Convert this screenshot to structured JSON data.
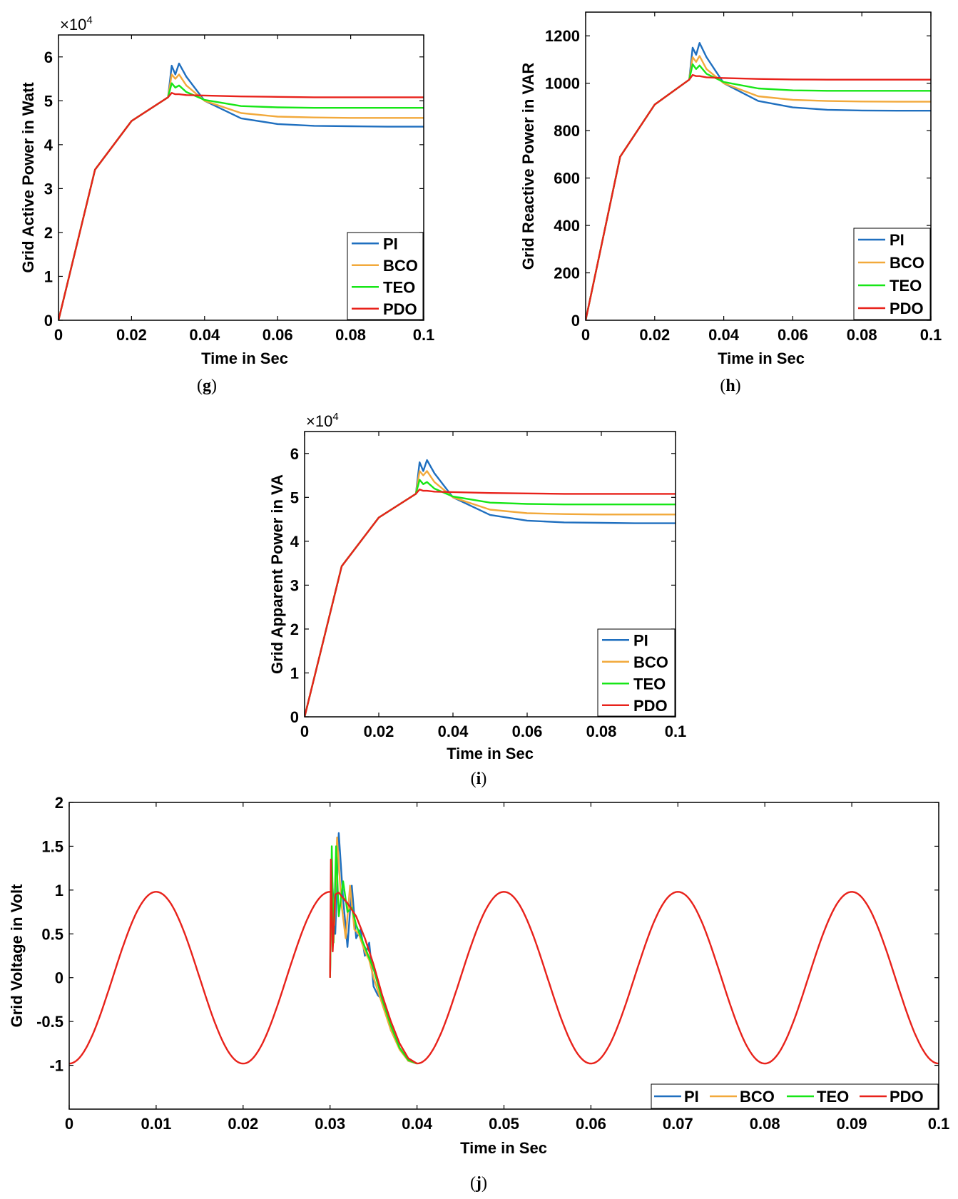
{
  "figure": {
    "series_colors": {
      "PI": "#1f6fbf",
      "BCO": "#f2a93b",
      "TEO": "#17e617",
      "PDO": "#e8221b"
    }
  },
  "chart_data": [
    {
      "id": "g",
      "type": "line",
      "subcaption": "g",
      "xlabel": "Time in Sec",
      "ylabel": "Grid Active Power in Watt",
      "exponent_base": "×10",
      "exponent_power": "4",
      "xlim": [
        0,
        0.1
      ],
      "ylim": [
        0,
        6.5
      ],
      "xticks": [
        0,
        0.02,
        0.04,
        0.06,
        0.08,
        0.1
      ],
      "xtick_labels": [
        "0",
        "0.02",
        "0.04",
        "0.06",
        "0.08",
        "0.1"
      ],
      "yticks": [
        0,
        1,
        2,
        3,
        4,
        5,
        6
      ],
      "ytick_labels": [
        "0",
        "1",
        "2",
        "3",
        "4",
        "5",
        "6"
      ],
      "legend": {
        "entries": [
          "PI",
          "BCO",
          "TEO",
          "PDO"
        ],
        "location": "bottom-right",
        "orientation": "vertical"
      },
      "series": [
        {
          "name": "PI",
          "x": [
            0,
            0.01,
            0.02,
            0.03,
            0.031,
            0.032,
            0.033,
            0.035,
            0.04,
            0.05,
            0.06,
            0.07,
            0.08,
            0.09,
            0.1
          ],
          "y": [
            0,
            3.43,
            4.54,
            5.08,
            5.8,
            5.6,
            5.85,
            5.55,
            5.0,
            4.6,
            4.47,
            4.43,
            4.42,
            4.41,
            4.41
          ]
        },
        {
          "name": "BCO",
          "x": [
            0,
            0.01,
            0.02,
            0.03,
            0.031,
            0.032,
            0.033,
            0.035,
            0.04,
            0.05,
            0.06,
            0.07,
            0.08,
            0.09,
            0.1
          ],
          "y": [
            0,
            3.43,
            4.54,
            5.08,
            5.6,
            5.5,
            5.6,
            5.35,
            5.0,
            4.72,
            4.64,
            4.62,
            4.61,
            4.61,
            4.61
          ]
        },
        {
          "name": "TEO",
          "x": [
            0,
            0.01,
            0.02,
            0.03,
            0.031,
            0.032,
            0.033,
            0.035,
            0.04,
            0.05,
            0.06,
            0.07,
            0.08,
            0.09,
            0.1
          ],
          "y": [
            0,
            3.43,
            4.54,
            5.08,
            5.4,
            5.3,
            5.35,
            5.2,
            5.02,
            4.88,
            4.85,
            4.84,
            4.84,
            4.84,
            4.84
          ]
        },
        {
          "name": "PDO",
          "x": [
            0,
            0.01,
            0.02,
            0.03,
            0.031,
            0.032,
            0.033,
            0.035,
            0.04,
            0.05,
            0.06,
            0.07,
            0.08,
            0.09,
            0.1
          ],
          "y": [
            0,
            3.43,
            4.54,
            5.08,
            5.18,
            5.15,
            5.15,
            5.13,
            5.12,
            5.1,
            5.09,
            5.08,
            5.08,
            5.08,
            5.08
          ]
        }
      ]
    },
    {
      "id": "h",
      "type": "line",
      "subcaption": "h",
      "xlabel": "Time in Sec",
      "ylabel": "Grid Reactive Power in VAR",
      "xlim": [
        0,
        0.1
      ],
      "ylim": [
        0,
        1300
      ],
      "xticks": [
        0,
        0.02,
        0.04,
        0.06,
        0.08,
        0.1
      ],
      "xtick_labels": [
        "0",
        "0.02",
        "0.04",
        "0.06",
        "0.08",
        "0.1"
      ],
      "yticks": [
        0,
        200,
        400,
        600,
        800,
        1000,
        1200
      ],
      "ytick_labels": [
        "0",
        "200",
        "400",
        "600",
        "800",
        "1000",
        "1200"
      ],
      "legend": {
        "entries": [
          "PI",
          "BCO",
          "TEO",
          "PDO"
        ],
        "location": "bottom-right",
        "orientation": "vertical"
      },
      "series": [
        {
          "name": "PI",
          "x": [
            0,
            0.01,
            0.02,
            0.03,
            0.031,
            0.032,
            0.033,
            0.035,
            0.04,
            0.05,
            0.06,
            0.07,
            0.08,
            0.09,
            0.1
          ],
          "y": [
            0,
            690,
            910,
            1015,
            1150,
            1120,
            1170,
            1110,
            1000,
            925,
            898,
            888,
            885,
            884,
            884
          ]
        },
        {
          "name": "BCO",
          "x": [
            0,
            0.01,
            0.02,
            0.03,
            0.031,
            0.032,
            0.033,
            0.035,
            0.04,
            0.05,
            0.06,
            0.07,
            0.08,
            0.09,
            0.1
          ],
          "y": [
            0,
            690,
            910,
            1015,
            1110,
            1090,
            1115,
            1060,
            1000,
            945,
            930,
            925,
            923,
            922,
            922
          ]
        },
        {
          "name": "TEO",
          "x": [
            0,
            0.01,
            0.02,
            0.03,
            0.031,
            0.032,
            0.033,
            0.035,
            0.04,
            0.05,
            0.06,
            0.07,
            0.08,
            0.09,
            0.1
          ],
          "y": [
            0,
            690,
            910,
            1015,
            1080,
            1060,
            1075,
            1040,
            1005,
            978,
            970,
            968,
            968,
            968,
            968
          ]
        },
        {
          "name": "PDO",
          "x": [
            0,
            0.01,
            0.02,
            0.03,
            0.031,
            0.032,
            0.033,
            0.035,
            0.04,
            0.05,
            0.06,
            0.07,
            0.08,
            0.09,
            0.1
          ],
          "y": [
            0,
            690,
            910,
            1015,
            1035,
            1030,
            1030,
            1025,
            1022,
            1018,
            1016,
            1015,
            1015,
            1015,
            1015
          ]
        }
      ]
    },
    {
      "id": "i",
      "type": "line",
      "subcaption": "i",
      "xlabel": "Time in Sec",
      "ylabel": "Grid Apparent Power in VA",
      "exponent_base": "×10",
      "exponent_power": "4",
      "xlim": [
        0,
        0.1
      ],
      "ylim": [
        0,
        6.5
      ],
      "xticks": [
        0,
        0.02,
        0.04,
        0.06,
        0.08,
        0.1
      ],
      "xtick_labels": [
        "0",
        "0.02",
        "0.04",
        "0.06",
        "0.08",
        "0.1"
      ],
      "yticks": [
        0,
        1,
        2,
        3,
        4,
        5,
        6
      ],
      "ytick_labels": [
        "0",
        "1",
        "2",
        "3",
        "4",
        "5",
        "6"
      ],
      "legend": {
        "entries": [
          "PI",
          "BCO",
          "TEO",
          "PDO"
        ],
        "location": "bottom-right",
        "orientation": "vertical"
      },
      "series": [
        {
          "name": "PI",
          "x": [
            0,
            0.01,
            0.02,
            0.03,
            0.031,
            0.032,
            0.033,
            0.035,
            0.04,
            0.05,
            0.06,
            0.07,
            0.08,
            0.09,
            0.1
          ],
          "y": [
            0,
            3.43,
            4.54,
            5.08,
            5.8,
            5.6,
            5.85,
            5.55,
            5.0,
            4.6,
            4.47,
            4.43,
            4.42,
            4.41,
            4.41
          ]
        },
        {
          "name": "BCO",
          "x": [
            0,
            0.01,
            0.02,
            0.03,
            0.031,
            0.032,
            0.033,
            0.035,
            0.04,
            0.05,
            0.06,
            0.07,
            0.08,
            0.09,
            0.1
          ],
          "y": [
            0,
            3.43,
            4.54,
            5.08,
            5.6,
            5.5,
            5.6,
            5.35,
            5.0,
            4.72,
            4.64,
            4.62,
            4.61,
            4.61,
            4.61
          ]
        },
        {
          "name": "TEO",
          "x": [
            0,
            0.01,
            0.02,
            0.03,
            0.031,
            0.032,
            0.033,
            0.035,
            0.04,
            0.05,
            0.06,
            0.07,
            0.08,
            0.09,
            0.1
          ],
          "y": [
            0,
            3.43,
            4.54,
            5.08,
            5.4,
            5.3,
            5.35,
            5.2,
            5.02,
            4.88,
            4.85,
            4.84,
            4.84,
            4.84,
            4.84
          ]
        },
        {
          "name": "PDO",
          "x": [
            0,
            0.01,
            0.02,
            0.03,
            0.031,
            0.032,
            0.033,
            0.035,
            0.04,
            0.05,
            0.06,
            0.07,
            0.08,
            0.09,
            0.1
          ],
          "y": [
            0,
            3.43,
            4.54,
            5.08,
            5.18,
            5.15,
            5.15,
            5.13,
            5.12,
            5.1,
            5.09,
            5.08,
            5.08,
            5.08,
            5.08
          ]
        }
      ]
    },
    {
      "id": "j",
      "type": "line",
      "subcaption": "j",
      "xlabel": "Time in Sec",
      "ylabel": "Grid Voltage in Volt",
      "xlim": [
        0,
        0.1
      ],
      "ylim": [
        -1.5,
        2
      ],
      "xticks": [
        0,
        0.01,
        0.02,
        0.03,
        0.04,
        0.05,
        0.06,
        0.07,
        0.08,
        0.09,
        0.1
      ],
      "xtick_labels": [
        "0",
        "0.01",
        "0.02",
        "0.03",
        "0.04",
        "0.05",
        "0.06",
        "0.07",
        "0.08",
        "0.09",
        "0.1"
      ],
      "yticks": [
        -1,
        -0.5,
        0,
        0.5,
        1,
        1.5,
        2
      ],
      "ytick_labels": [
        "-1",
        "-0.5",
        "0",
        "0.5",
        "1",
        "1.5",
        "2"
      ],
      "legend": {
        "entries": [
          "PI",
          "BCO",
          "TEO",
          "PDO"
        ],
        "location": "bottom-right",
        "orientation": "horizontal"
      },
      "series": [
        {
          "name": "PI",
          "x": [
            0.03,
            0.0302,
            0.0306,
            0.031,
            0.0315,
            0.032,
            0.0325,
            0.033,
            0.0335,
            0.034,
            0.0345,
            0.035,
            0.0355,
            0.036,
            0.037,
            0.038,
            0.039,
            0.04
          ],
          "y": [
            0,
            1.2,
            0.5,
            1.65,
            0.9,
            0.35,
            1.05,
            0.45,
            0.55,
            0.25,
            0.4,
            -0.1,
            -0.2,
            -0.25,
            -0.6,
            -0.8,
            -0.95,
            -0.98
          ]
        },
        {
          "name": "BCO",
          "x": [
            0.03,
            0.0302,
            0.0305,
            0.0308,
            0.0313,
            0.0318,
            0.0323,
            0.0328,
            0.0333,
            0.034,
            0.0345,
            0.035,
            0.036,
            0.037,
            0.038,
            0.039,
            0.04
          ],
          "y": [
            0,
            1.1,
            0.6,
            1.6,
            0.85,
            0.45,
            1.05,
            0.55,
            0.5,
            0.3,
            0.2,
            0.0,
            -0.3,
            -0.6,
            -0.82,
            -0.95,
            -0.98
          ]
        },
        {
          "name": "TEO",
          "x": [
            0.03,
            0.0302,
            0.0304,
            0.0307,
            0.031,
            0.0315,
            0.032,
            0.0325,
            0.033,
            0.034,
            0.035,
            0.036,
            0.037,
            0.038,
            0.039,
            0.04
          ],
          "y": [
            0,
            1.5,
            0.4,
            1.5,
            0.7,
            1.1,
            0.75,
            0.8,
            0.6,
            0.35,
            0.1,
            -0.25,
            -0.55,
            -0.8,
            -0.94,
            -0.98
          ]
        },
        {
          "name": "PDO",
          "x": [
            0.03,
            0.0301,
            0.0303,
            0.0306,
            0.031,
            0.032,
            0.033,
            0.034,
            0.035,
            0.036,
            0.037,
            0.038,
            0.039,
            0.04
          ],
          "y": [
            0,
            1.35,
            0.3,
            0.95,
            0.97,
            0.85,
            0.7,
            0.45,
            0.15,
            -0.2,
            -0.5,
            -0.75,
            -0.92,
            -0.98
          ]
        },
        {
          "name": "PDO_sine",
          "base_of": "PDO",
          "function": "y = -0.98*cos(2*pi*50*t)",
          "amplitude": 0.98,
          "frequency_hz": 50,
          "segments": [
            [
              0,
              0.03
            ],
            [
              0.04,
              0.1
            ]
          ]
        }
      ]
    }
  ]
}
